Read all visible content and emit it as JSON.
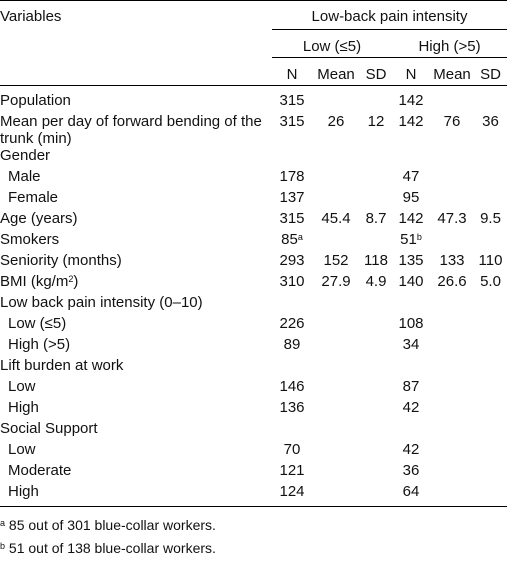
{
  "header": {
    "variables": "Variables",
    "group_title": "Low-back pain intensity",
    "low_group": "Low (≤5)",
    "high_group": "High (>5)",
    "col_n": "N",
    "col_mean": "Mean",
    "col_sd": "SD"
  },
  "rows": [
    {
      "label": "Population",
      "ln": "315",
      "lm": "",
      "ls": "",
      "hn": "142",
      "hm": "",
      "hs": ""
    },
    {
      "label": "Mean per day of forward bending of the trunk (min)",
      "ln": "315",
      "lm": "26",
      "ls": "12",
      "hn": "142",
      "hm": "76",
      "hs": "36"
    },
    {
      "label": "Gender",
      "ln": "",
      "lm": "",
      "ls": "",
      "hn": "",
      "hm": "",
      "hs": ""
    },
    {
      "label": "Male",
      "ln": "178",
      "lm": "",
      "ls": "",
      "hn": "47",
      "hm": "",
      "hs": ""
    },
    {
      "label": "Female",
      "ln": "137",
      "lm": "",
      "ls": "",
      "hn": "95",
      "hm": "",
      "hs": ""
    },
    {
      "label": "Age (years)",
      "ln": "315",
      "lm": "45.4",
      "ls": "8.7",
      "hn": "142",
      "hm": "47.3",
      "hs": "9.5"
    },
    {
      "label": "Smokers",
      "ln": "85",
      "ln_sup": "a",
      "lm": "",
      "ls": "",
      "hn": "51",
      "hn_sup": "b",
      "hm": "",
      "hs": ""
    },
    {
      "label": "Seniority (months)",
      "ln": "293",
      "lm": "152",
      "ls": "118",
      "hn": "135",
      "hm": "133",
      "hs": "110"
    },
    {
      "label": "BMI (kg/m",
      "label_sup": "2",
      "label_end": ")",
      "ln": "310",
      "lm": "27.9",
      "ls": "4.9",
      "hn": "140",
      "hm": "26.6",
      "hs": "5.0"
    },
    {
      "label": "Low back pain intensity (0–10)",
      "ln": "",
      "lm": "",
      "ls": "",
      "hn": "",
      "hm": "",
      "hs": ""
    },
    {
      "label": "Low (≤5)",
      "ln": "226",
      "lm": "",
      "ls": "",
      "hn": "108",
      "hm": "",
      "hs": ""
    },
    {
      "label": "High (>5)",
      "ln": "89",
      "lm": "",
      "ls": "",
      "hn": "34",
      "hm": "",
      "hs": ""
    },
    {
      "label": "Lift burden at work",
      "ln": "",
      "lm": "",
      "ls": "",
      "hn": "",
      "hm": "",
      "hs": ""
    },
    {
      "label": "Low",
      "ln": "146",
      "lm": "",
      "ls": "",
      "hn": "87",
      "hm": "",
      "hs": ""
    },
    {
      "label": "High",
      "ln": "136",
      "lm": "",
      "ls": "",
      "hn": "42",
      "hm": "",
      "hs": ""
    },
    {
      "label": "Social Support",
      "ln": "",
      "lm": "",
      "ls": "",
      "hn": "",
      "hm": "",
      "hs": ""
    },
    {
      "label": "Low",
      "ln": "70",
      "lm": "",
      "ls": "",
      "hn": "42",
      "hm": "",
      "hs": ""
    },
    {
      "label": "Moderate",
      "ln": "121",
      "lm": "",
      "ls": "",
      "hn": "36",
      "hm": "",
      "hs": ""
    },
    {
      "label": "High",
      "ln": "124",
      "lm": "",
      "ls": "",
      "hn": "64",
      "hm": "",
      "hs": ""
    }
  ],
  "footnotes": {
    "a_mark": "a",
    "a_text": "85 out of 301 blue-collar workers.",
    "b_mark": "b",
    "b_text": "51 out of 138 blue-collar workers."
  }
}
